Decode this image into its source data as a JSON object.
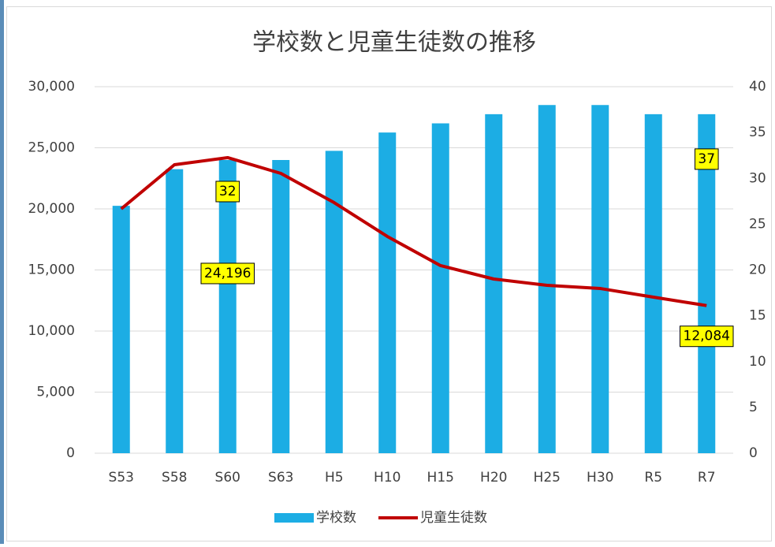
{
  "chart_data": {
    "type": "bar_line",
    "title": "学校数と児童生徒数の推移",
    "categories": [
      "S53",
      "S58",
      "S60",
      "S63",
      "H5",
      "H10",
      "H15",
      "H20",
      "H25",
      "H30",
      "R5",
      "R7"
    ],
    "series": [
      {
        "name": "学校数",
        "type": "bar",
        "axis": "y2",
        "color": "#1cade4",
        "values": [
          27,
          31,
          32,
          32,
          33,
          35,
          36,
          37,
          38,
          38,
          37,
          37
        ],
        "value_labels": [
          null,
          null,
          "32",
          null,
          null,
          null,
          null,
          null,
          null,
          null,
          null,
          "37"
        ]
      },
      {
        "name": "児童生徒数",
        "type": "line",
        "color": "#c00000",
        "values": [
          20000,
          23613,
          24196,
          22903,
          20516,
          17742,
          15355,
          14258,
          13742,
          13484,
          12774,
          12084
        ],
        "value_labels": [
          null,
          null,
          "24,196",
          null,
          null,
          null,
          null,
          null,
          null,
          null,
          null,
          "12,084"
        ]
      }
    ],
    "ylim": [
      0,
      30000
    ],
    "yticks": [
      0,
      {
        "value": 5000,
        "label": "5,000"
      },
      {
        "value": 10000,
        "label": "10,000"
      },
      {
        "value": 15000,
        "label": "15,000"
      },
      {
        "value": 20000,
        "label": "20,000"
      },
      {
        "value": 25000,
        "label": "25,000"
      },
      {
        "value": 30000,
        "label": "30,000"
      }
    ],
    "y2lim": [
      0,
      40
    ],
    "y2ticks": [
      0,
      5,
      10,
      15,
      20,
      25,
      30,
      35,
      40
    ],
    "grid": true,
    "legend": "bottom"
  }
}
